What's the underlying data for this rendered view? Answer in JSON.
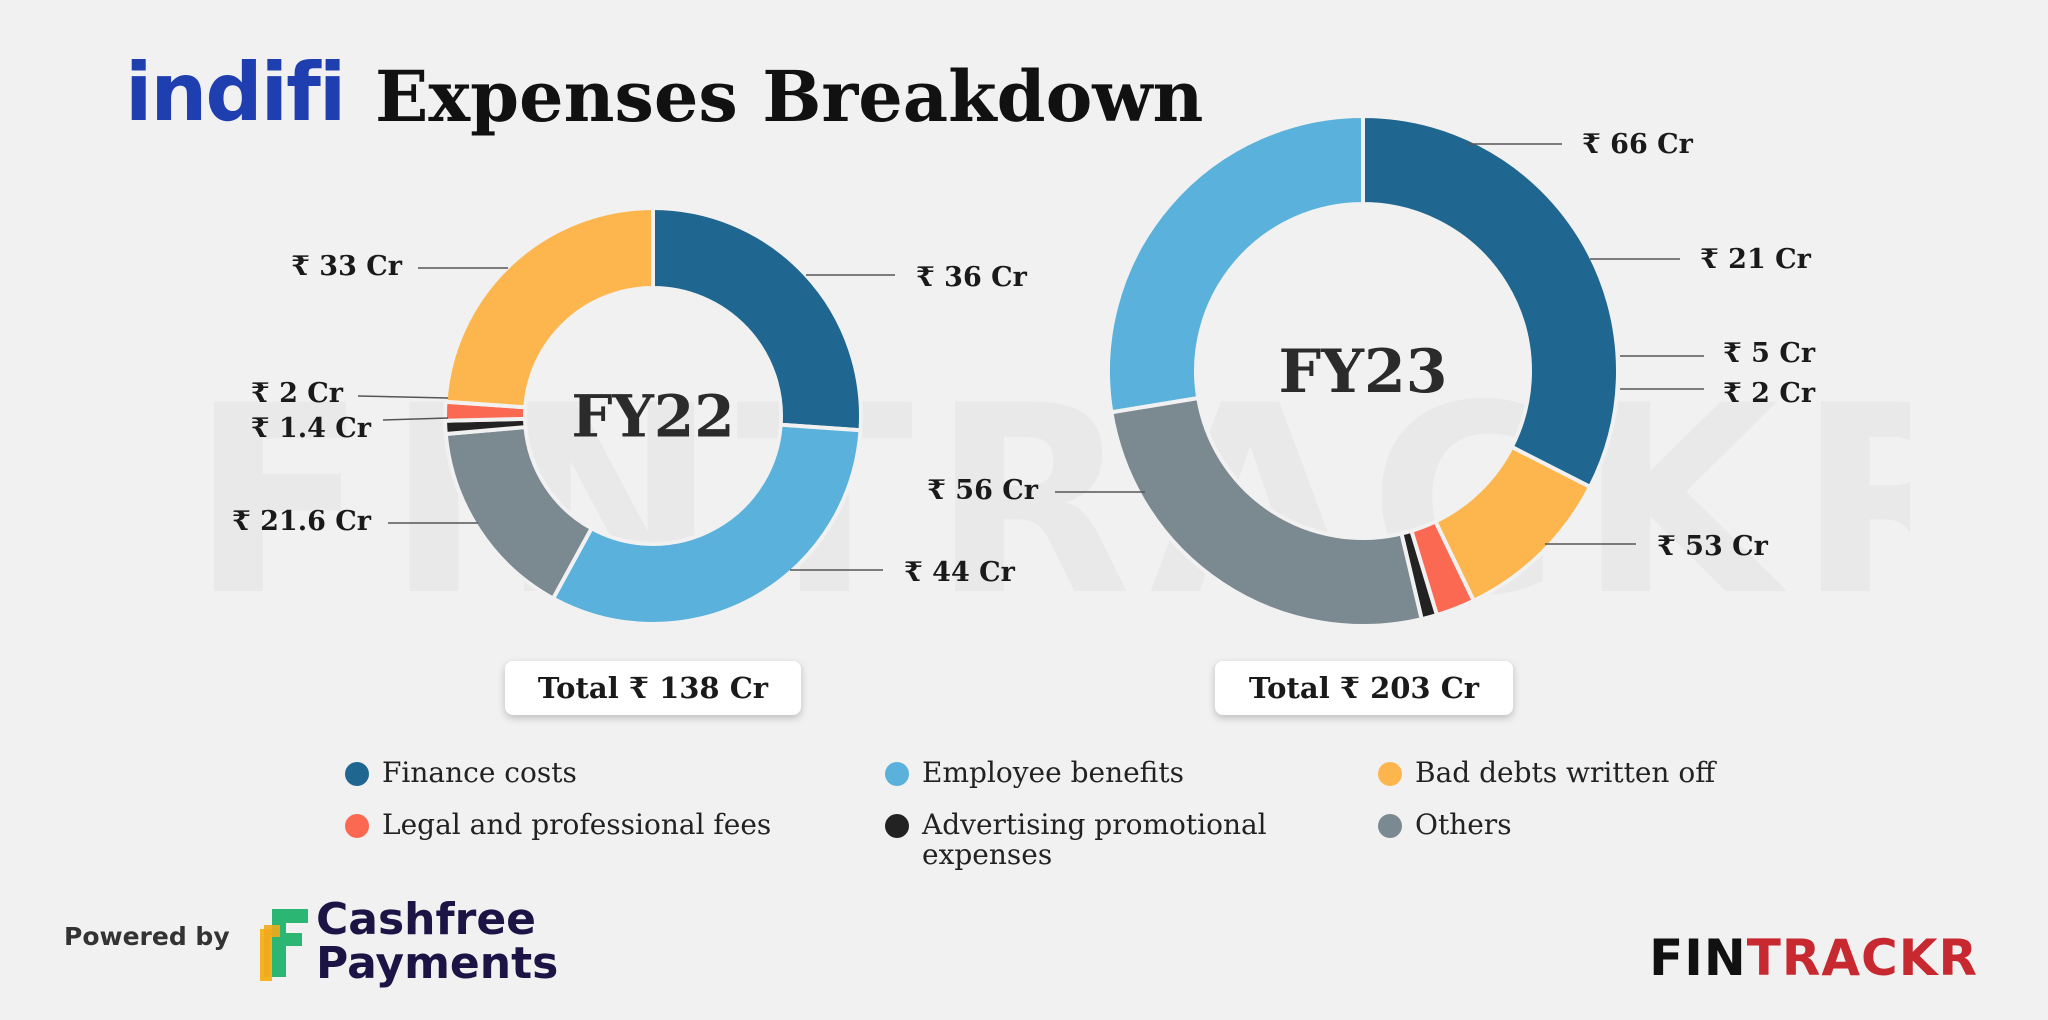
{
  "header": {
    "logo_text": "indifi",
    "title": "Expenses Breakdown"
  },
  "watermark": "FINTRACKR",
  "chart_data": [
    {
      "type": "pie",
      "title": "FY22",
      "categories": [
        "Finance costs",
        "Employee benefits",
        "Others",
        "Advertising promotional expenses",
        "Legal and professional fees",
        "Bad debts written off"
      ],
      "values": [
        36,
        44,
        21.6,
        1.4,
        2,
        33
      ],
      "labels": [
        "₹ 36 Cr",
        "₹ 44 Cr",
        "₹ 21.6 Cr",
        "₹ 1.4 Cr",
        "₹ 2 Cr",
        "₹ 33 Cr"
      ],
      "unit": "Cr",
      "total_label": "Total ₹ 138 Cr",
      "donut": true
    },
    {
      "type": "pie",
      "title": "FY23",
      "categories": [
        "Finance costs",
        "Bad debts written off",
        "Legal and professional fees",
        "Advertising promotional expenses",
        "Others",
        "Employee benefits"
      ],
      "values": [
        66,
        21,
        5,
        2,
        53,
        56
      ],
      "labels": [
        "₹ 66 Cr",
        "₹ 21 Cr",
        "₹ 5 Cr",
        "₹ 2 Cr",
        "₹ 53 Cr",
        "₹ 56 Cr"
      ],
      "unit": "Cr",
      "total_label": "Total ₹ 203 Cr",
      "donut": true
    }
  ],
  "legend": [
    {
      "label": "Finance costs",
      "color": "#1f6690"
    },
    {
      "label": "Employee benefits",
      "color": "#5ab1db"
    },
    {
      "label": "Bad debts written off",
      "color": "#fdb64e"
    },
    {
      "label": "Legal and professional fees",
      "color": "#fb6953"
    },
    {
      "label": "Advertising promotional expenses",
      "color": "#222222"
    },
    {
      "label": "Others",
      "color": "#7b8991"
    }
  ],
  "footer": {
    "powered_by": "Powered by",
    "sponsor_line1": "Cashfree",
    "sponsor_line2": "Payments",
    "brand_part1": "FIN",
    "brand_part2": "TRACKR"
  }
}
